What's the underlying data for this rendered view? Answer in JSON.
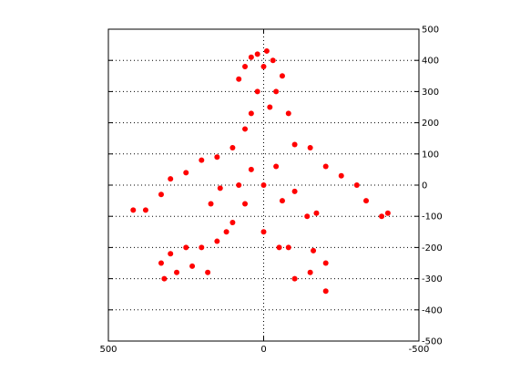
{
  "chart_data": {
    "type": "scatter",
    "title": "",
    "xlabel": "",
    "ylabel": "",
    "xlim": [
      500,
      -500
    ],
    "ylim": [
      -500,
      500
    ],
    "x_ticks": [
      "500",
      "0",
      "-500"
    ],
    "y_ticks": [
      "-500",
      "-400",
      "-300",
      "-200",
      "-100",
      "0",
      "100",
      "200",
      "300",
      "400",
      "500"
    ],
    "y_axis_side": "right",
    "grid": true,
    "marker_color": "#ff0000",
    "series": [
      {
        "points": [
          [
            20,
            420
          ],
          [
            -10,
            430
          ],
          [
            40,
            410
          ],
          [
            -30,
            400
          ],
          [
            0,
            380
          ],
          [
            60,
            380
          ],
          [
            -60,
            350
          ],
          [
            80,
            340
          ],
          [
            20,
            300
          ],
          [
            -40,
            300
          ],
          [
            -20,
            250
          ],
          [
            40,
            230
          ],
          [
            -80,
            230
          ],
          [
            60,
            180
          ],
          [
            -100,
            130
          ],
          [
            100,
            120
          ],
          [
            -150,
            120
          ],
          [
            150,
            90
          ],
          [
            200,
            80
          ],
          [
            -200,
            60
          ],
          [
            -250,
            30
          ],
          [
            250,
            40
          ],
          [
            300,
            20
          ],
          [
            -300,
            0
          ],
          [
            330,
            -30
          ],
          [
            -330,
            -50
          ],
          [
            380,
            -80
          ],
          [
            -380,
            -100
          ],
          [
            -400,
            -90
          ],
          [
            420,
            -80
          ],
          [
            170,
            -60
          ],
          [
            -170,
            -90
          ],
          [
            60,
            -60
          ],
          [
            -60,
            -50
          ],
          [
            120,
            -150
          ],
          [
            150,
            -180
          ],
          [
            200,
            -200
          ],
          [
            250,
            -200
          ],
          [
            300,
            -220
          ],
          [
            330,
            -250
          ],
          [
            180,
            -280
          ],
          [
            230,
            -260
          ],
          [
            280,
            -280
          ],
          [
            320,
            -300
          ],
          [
            100,
            -120
          ],
          [
            0,
            -150
          ],
          [
            -80,
            -200
          ],
          [
            -200,
            -250
          ],
          [
            -150,
            -280
          ],
          [
            -50,
            -200
          ],
          [
            -100,
            -300
          ],
          [
            -200,
            -340
          ],
          [
            -160,
            -210
          ],
          [
            -140,
            -100
          ],
          [
            40,
            50
          ],
          [
            -40,
            60
          ],
          [
            0,
            0
          ],
          [
            80,
            0
          ],
          [
            -100,
            -20
          ],
          [
            140,
            -10
          ]
        ]
      }
    ]
  }
}
